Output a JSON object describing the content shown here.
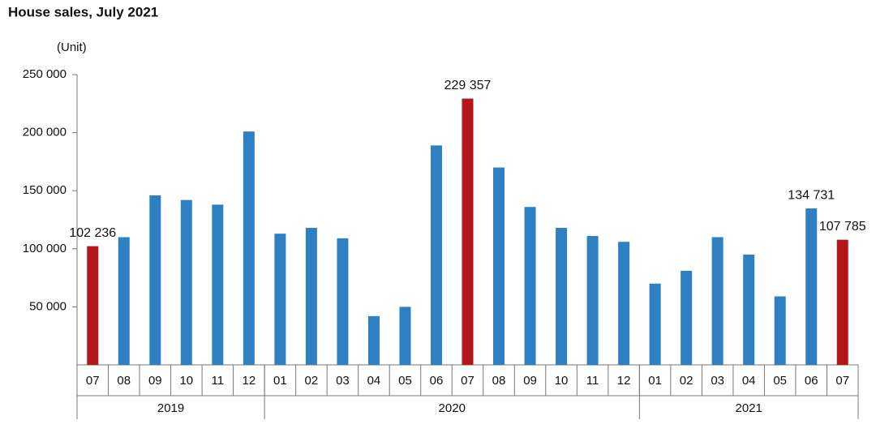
{
  "chart_data": {
    "type": "bar",
    "title": "House sales, July 2021",
    "y_axis_label": "(Unit)",
    "ylim": [
      0,
      250000
    ],
    "yticks": [
      {
        "value": 50000,
        "label": "50 000"
      },
      {
        "value": 100000,
        "label": "100 000"
      },
      {
        "value": 150000,
        "label": "150 000"
      },
      {
        "value": 200000,
        "label": "200 000"
      },
      {
        "value": 250000,
        "label": "250 000"
      }
    ],
    "groups": [
      {
        "label": "2019",
        "categories": [
          "07",
          "08",
          "09",
          "10",
          "11",
          "12"
        ],
        "values": [
          102236,
          110000,
          146000,
          142000,
          138000,
          201000
        ],
        "value_labels": [
          "102 236",
          null,
          null,
          null,
          null,
          null
        ],
        "colors": [
          "#b3161b",
          "#2f80c2",
          "#2f80c2",
          "#2f80c2",
          "#2f80c2",
          "#2f80c2"
        ]
      },
      {
        "label": "2020",
        "categories": [
          "01",
          "02",
          "03",
          "04",
          "05",
          "06",
          "07",
          "08",
          "09",
          "10",
          "11",
          "12"
        ],
        "values": [
          113000,
          118000,
          109000,
          42000,
          50000,
          189000,
          229357,
          170000,
          136000,
          118000,
          111000,
          106000
        ],
        "value_labels": [
          null,
          null,
          null,
          null,
          null,
          null,
          "229 357",
          null,
          null,
          null,
          null,
          null
        ],
        "colors": [
          "#2f80c2",
          "#2f80c2",
          "#2f80c2",
          "#2f80c2",
          "#2f80c2",
          "#2f80c2",
          "#b3161b",
          "#2f80c2",
          "#2f80c2",
          "#2f80c2",
          "#2f80c2",
          "#2f80c2"
        ]
      },
      {
        "label": "2021",
        "categories": [
          "01",
          "02",
          "03",
          "04",
          "05",
          "06",
          "07"
        ],
        "values": [
          70000,
          81000,
          110000,
          95000,
          59000,
          134731,
          107785
        ],
        "value_labels": [
          null,
          null,
          null,
          null,
          null,
          "134 731",
          "107 785"
        ],
        "colors": [
          "#2f80c2",
          "#2f80c2",
          "#2f80c2",
          "#2f80c2",
          "#2f80c2",
          "#2f80c2",
          "#b3161b"
        ]
      }
    ]
  }
}
